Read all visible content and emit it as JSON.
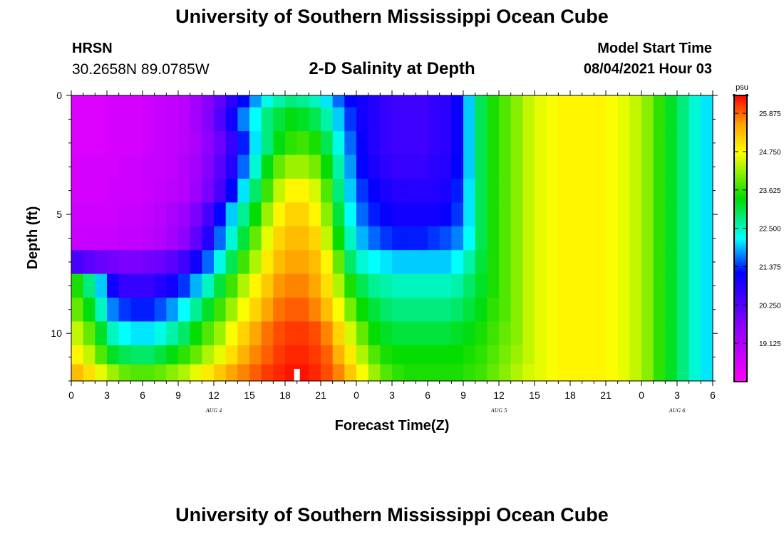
{
  "header": {
    "title": "University of Southern Mississippi Ocean Cube",
    "station": "HRSN",
    "coords": "30.2658N  89.0785W",
    "plot_title": "2-D Salinity at Depth",
    "model_label": "Model Start Time",
    "model_time": "08/04/2021 Hour 03"
  },
  "footer": {
    "title": "University of Southern Mississippi Ocean Cube"
  },
  "chart_data": {
    "type": "heatmap",
    "title": "2-D Salinity at Depth",
    "xlabel": "Forecast Time(Z)",
    "ylabel": "Depth (ft)",
    "x_tick_labels": [
      "0",
      "3",
      "6",
      "9",
      "12",
      "15",
      "18",
      "21",
      "0",
      "3",
      "6",
      "9",
      "12",
      "15",
      "18",
      "21",
      "0",
      "3",
      "6"
    ],
    "x_range_hours": [
      0,
      54
    ],
    "date_labels": [
      {
        "text": "AUG 4",
        "hour": 12
      },
      {
        "text": "AUG 5",
        "hour": 36
      },
      {
        "text": "AUG 6",
        "hour": 51
      }
    ],
    "y_range": [
      0,
      12
    ],
    "y_tick_labels": [
      "0",
      "5",
      "10"
    ],
    "y_tick_values": [
      0,
      5,
      10
    ],
    "colorbar": {
      "unit": "psu",
      "min": 18,
      "max": 26.4,
      "tick_values": [
        19.125,
        20.25,
        21.375,
        22.5,
        23.625,
        24.75,
        25.875
      ],
      "tick_labels": [
        "19.125",
        "20.250",
        "21.375",
        "22.500",
        "23.625",
        "24.750",
        "25.875"
      ]
    },
    "grid": {
      "x_hours": [
        0,
        1,
        2,
        3,
        4,
        5,
        6,
        7,
        8,
        9,
        10,
        11,
        12,
        13,
        14,
        15,
        16,
        17,
        18,
        19,
        20,
        21,
        22,
        23,
        24,
        25,
        26,
        27,
        28,
        29,
        30,
        31,
        32,
        33,
        34,
        35,
        36,
        37,
        38,
        39,
        40,
        41,
        42,
        43,
        44,
        45,
        46,
        47,
        48,
        49,
        50,
        51,
        52,
        53
      ],
      "depth_ft": [
        0,
        1,
        2,
        3,
        4,
        5,
        6,
        7,
        8,
        9,
        10,
        11,
        11.6
      ],
      "salinity_psu": [
        [
          18.5,
          18.5,
          18.5,
          18.6,
          18.6,
          18.6,
          18.7,
          18.8,
          18.9,
          19.0,
          19.3,
          19.7,
          20.1,
          20.7,
          21.2,
          21.8,
          22.3,
          22.6,
          22.8,
          22.7,
          22.5,
          22.1,
          21.6,
          21.2,
          21.0,
          20.8,
          20.6,
          20.5,
          20.5,
          20.5,
          20.6,
          20.7,
          21.1,
          22.0,
          23.0,
          23.5,
          23.8,
          24.1,
          24.4,
          24.6,
          24.7,
          24.8,
          24.8,
          24.8,
          24.8,
          24.7,
          24.6,
          24.4,
          24.1,
          23.6,
          23.2,
          22.8,
          22.4,
          22.1
        ],
        [
          18.5,
          18.5,
          18.5,
          18.6,
          18.6,
          18.6,
          18.7,
          18.8,
          18.9,
          19.0,
          19.3,
          19.7,
          20.3,
          21.0,
          21.7,
          22.2,
          22.8,
          23.1,
          23.3,
          23.2,
          23.0,
          22.6,
          22.0,
          21.4,
          21.0,
          20.8,
          20.6,
          20.5,
          20.5,
          20.5,
          20.6,
          20.7,
          21.1,
          22.0,
          23.0,
          23.5,
          23.8,
          24.1,
          24.4,
          24.6,
          24.7,
          24.8,
          24.8,
          24.8,
          24.8,
          24.7,
          24.6,
          24.4,
          24.1,
          23.6,
          23.2,
          22.8,
          22.4,
          22.1
        ],
        [
          18.5,
          18.5,
          18.5,
          18.6,
          18.6,
          18.6,
          18.7,
          18.8,
          18.9,
          19.0,
          19.2,
          19.6,
          20.0,
          20.6,
          21.3,
          22.1,
          22.8,
          23.3,
          23.6,
          23.7,
          23.5,
          23.0,
          22.3,
          21.6,
          21.1,
          20.8,
          20.6,
          20.5,
          20.5,
          20.5,
          20.6,
          20.7,
          21.1,
          22.0,
          23.0,
          23.5,
          23.8,
          24.1,
          24.4,
          24.6,
          24.7,
          24.8,
          24.8,
          24.8,
          24.8,
          24.7,
          24.6,
          24.4,
          24.1,
          23.6,
          23.2,
          22.8,
          22.4,
          22.1
        ],
        [
          18.6,
          18.6,
          18.6,
          18.6,
          18.7,
          18.7,
          18.8,
          18.8,
          18.9,
          19.1,
          19.3,
          19.7,
          20.2,
          20.8,
          21.6,
          22.4,
          23.3,
          23.9,
          24.2,
          24.2,
          24.0,
          23.4,
          22.6,
          21.8,
          21.2,
          20.9,
          20.7,
          20.6,
          20.6,
          20.6,
          20.7,
          20.8,
          21.2,
          22.0,
          23.0,
          23.5,
          23.8,
          24.1,
          24.4,
          24.6,
          24.7,
          24.8,
          24.8,
          24.8,
          24.8,
          24.7,
          24.6,
          24.4,
          24.1,
          23.6,
          23.2,
          22.8,
          22.4,
          22.1
        ],
        [
          18.6,
          18.6,
          18.6,
          18.7,
          18.7,
          18.7,
          18.8,
          18.9,
          19.0,
          19.1,
          19.4,
          19.8,
          20.4,
          21.2,
          22.1,
          22.9,
          23.7,
          24.4,
          24.8,
          24.8,
          24.5,
          23.8,
          22.8,
          22.0,
          21.4,
          21.1,
          20.9,
          20.8,
          20.8,
          20.8,
          20.8,
          20.9,
          21.3,
          22.1,
          23.0,
          23.5,
          23.8,
          24.1,
          24.4,
          24.6,
          24.7,
          24.8,
          24.8,
          24.8,
          24.8,
          24.7,
          24.6,
          24.4,
          24.1,
          23.6,
          23.2,
          22.8,
          22.4,
          22.1
        ],
        [
          18.7,
          18.7,
          18.7,
          18.7,
          18.8,
          18.8,
          18.9,
          19.0,
          19.2,
          19.4,
          19.8,
          20.4,
          21.2,
          22.0,
          22.7,
          23.4,
          24.2,
          24.8,
          25.1,
          25.1,
          24.8,
          24.1,
          23.1,
          22.2,
          21.6,
          21.3,
          21.1,
          21.0,
          21.0,
          21.0,
          21.0,
          21.1,
          21.4,
          22.1,
          23.0,
          23.5,
          23.8,
          24.1,
          24.4,
          24.6,
          24.7,
          24.8,
          24.8,
          24.8,
          24.8,
          24.7,
          24.6,
          24.4,
          24.1,
          23.6,
          23.2,
          22.8,
          22.4,
          22.1
        ],
        [
          18.8,
          18.8,
          18.8,
          18.8,
          18.9,
          18.9,
          19.0,
          19.1,
          19.3,
          19.6,
          20.1,
          20.8,
          21.6,
          22.4,
          23.1,
          23.9,
          24.6,
          25.1,
          25.3,
          25.3,
          25.1,
          24.4,
          23.4,
          22.5,
          21.9,
          21.6,
          21.4,
          21.3,
          21.3,
          21.3,
          21.4,
          21.5,
          21.7,
          22.2,
          23.0,
          23.5,
          23.8,
          24.1,
          24.4,
          24.6,
          24.7,
          24.8,
          24.8,
          24.8,
          24.8,
          24.7,
          24.6,
          24.4,
          24.1,
          23.6,
          23.2,
          22.8,
          22.4,
          22.1
        ],
        [
          20.4,
          20.2,
          20.0,
          19.9,
          19.8,
          19.8,
          19.9,
          20.0,
          20.2,
          20.5,
          21.0,
          21.6,
          22.3,
          23.0,
          23.7,
          24.3,
          24.9,
          25.3,
          25.5,
          25.5,
          25.3,
          24.8,
          23.9,
          22.9,
          22.4,
          22.2,
          22.1,
          22.0,
          22.0,
          22.0,
          22.0,
          22.0,
          22.2,
          22.6,
          23.1,
          23.5,
          23.8,
          24.1,
          24.4,
          24.6,
          24.7,
          24.8,
          24.8,
          24.8,
          24.8,
          24.7,
          24.6,
          24.4,
          24.1,
          23.6,
          23.2,
          22.8,
          22.4,
          22.1
        ],
        [
          23.5,
          22.8,
          22.0,
          21.0,
          20.6,
          20.6,
          20.6,
          20.8,
          21.0,
          21.4,
          21.9,
          22.5,
          23.1,
          23.7,
          24.3,
          24.8,
          25.2,
          25.6,
          25.7,
          25.7,
          25.5,
          25.0,
          24.3,
          23.5,
          23.0,
          22.7,
          22.6,
          22.5,
          22.5,
          22.5,
          22.5,
          22.5,
          22.6,
          22.9,
          23.2,
          23.5,
          23.8,
          24.1,
          24.4,
          24.6,
          24.7,
          24.8,
          24.8,
          24.8,
          24.8,
          24.7,
          24.6,
          24.4,
          24.1,
          23.6,
          23.2,
          22.8,
          22.4,
          22.1
        ],
        [
          23.9,
          23.3,
          22.5,
          21.7,
          21.4,
          21.3,
          21.3,
          21.5,
          21.8,
          22.2,
          22.7,
          23.2,
          23.7,
          24.2,
          24.7,
          25.1,
          25.5,
          25.8,
          25.9,
          25.9,
          25.7,
          25.3,
          24.7,
          24.0,
          23.4,
          23.1,
          22.9,
          22.8,
          22.8,
          22.8,
          22.8,
          22.8,
          22.9,
          23.1,
          23.3,
          23.6,
          23.8,
          24.1,
          24.4,
          24.6,
          24.7,
          24.8,
          24.8,
          24.8,
          24.8,
          24.7,
          24.6,
          24.4,
          24.1,
          23.6,
          23.2,
          22.8,
          22.4,
          22.1
        ],
        [
          24.4,
          23.9,
          23.2,
          22.5,
          22.2,
          22.1,
          22.1,
          22.3,
          22.6,
          22.9,
          23.4,
          23.8,
          24.2,
          24.7,
          25.1,
          25.5,
          25.8,
          26.0,
          26.1,
          26.1,
          26.0,
          25.7,
          25.1,
          24.5,
          23.9,
          23.4,
          23.2,
          23.1,
          23.1,
          23.1,
          23.1,
          23.1,
          23.2,
          23.3,
          23.5,
          23.7,
          23.9,
          24.1,
          24.4,
          24.6,
          24.7,
          24.8,
          24.8,
          24.8,
          24.8,
          24.7,
          24.6,
          24.4,
          24.1,
          23.6,
          23.2,
          22.8,
          22.4,
          22.1
        ],
        [
          24.8,
          24.4,
          23.8,
          23.2,
          23.0,
          22.9,
          22.9,
          23.1,
          23.3,
          23.6,
          23.9,
          24.3,
          24.6,
          25.0,
          25.4,
          25.7,
          25.9,
          26.1,
          26.2,
          26.2,
          26.1,
          25.9,
          25.4,
          24.9,
          24.3,
          23.8,
          23.5,
          23.4,
          23.4,
          23.4,
          23.4,
          23.4,
          23.4,
          23.5,
          23.6,
          23.8,
          24.0,
          24.2,
          24.4,
          24.6,
          24.7,
          24.8,
          24.8,
          24.8,
          24.8,
          24.7,
          24.6,
          24.4,
          24.1,
          23.6,
          23.2,
          22.8,
          22.4,
          22.1
        ],
        [
          25.3,
          25.0,
          24.6,
          24.2,
          23.9,
          23.8,
          23.8,
          23.9,
          24.1,
          24.3,
          24.6,
          24.9,
          25.2,
          25.5,
          25.7,
          25.9,
          26.1,
          26.2,
          26.3,
          26.3,
          26.2,
          26.0,
          25.7,
          25.2,
          24.7,
          24.2,
          23.8,
          23.6,
          23.5,
          23.5,
          23.5,
          23.5,
          23.5,
          23.6,
          23.7,
          23.9,
          24.1,
          24.3,
          24.5,
          24.6,
          24.7,
          24.8,
          24.8,
          24.8,
          24.8,
          24.7,
          24.6,
          24.4,
          24.1,
          23.6,
          23.2,
          22.8,
          22.4,
          22.1
        ]
      ],
      "marker": {
        "hour": 19,
        "depth_ft": 11.6
      }
    }
  }
}
